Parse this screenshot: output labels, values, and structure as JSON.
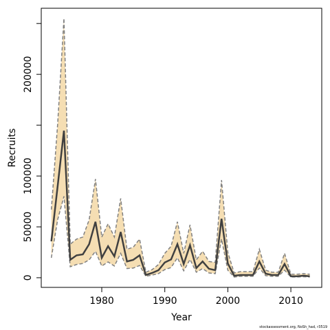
{
  "chart_data": {
    "type": "band-line",
    "xlabel": "Year",
    "ylabel": "Recruits",
    "footnote": "stockassessment.org, NoSh_had, r3519",
    "x": [
      1972,
      1973,
      1974,
      1975,
      1976,
      1977,
      1978,
      1979,
      1980,
      1981,
      1982,
      1983,
      1984,
      1985,
      1986,
      1987,
      1988,
      1989,
      1990,
      1991,
      1992,
      1993,
      1994,
      1995,
      1996,
      1997,
      1998,
      1999,
      2000,
      2001,
      2002,
      2003,
      2004,
      2005,
      2006,
      2007,
      2008,
      2009,
      2010,
      2011,
      2012,
      2013
    ],
    "values": [
      35800,
      90000,
      144600,
      17600,
      22000,
      23000,
      33000,
      55000,
      19600,
      31000,
      21000,
      45000,
      16000,
      17600,
      22000,
      2700,
      4700,
      7400,
      15000,
      18000,
      33000,
      13500,
      32000,
      9500,
      16000,
      8800,
      7400,
      58000,
      14000,
      2000,
      2700,
      2700,
      2700,
      16000,
      4000,
      2700,
      2700,
      13500,
      1400,
      1400,
      2000,
      1400
    ],
    "lower": [
      19600,
      57000,
      80000,
      10800,
      13000,
      14000,
      17600,
      26000,
      11500,
      15500,
      11500,
      24000,
      9000,
      9500,
      12000,
      1400,
      2700,
      4000,
      8000,
      10000,
      19600,
      6800,
      18000,
      5400,
      9000,
      4700,
      4000,
      38000,
      7400,
      700,
      1400,
      1400,
      1400,
      9500,
      2000,
      1400,
      1400,
      7400,
      700,
      700,
      1000,
      700
    ],
    "upper": [
      67000,
      151000,
      255000,
      33000,
      38000,
      40000,
      57000,
      97000,
      40000,
      53000,
      40000,
      78000,
      28000,
      30000,
      38000,
      5400,
      8000,
      13000,
      24000,
      31000,
      55000,
      24000,
      52000,
      17600,
      26000,
      16000,
      15000,
      96000,
      25000,
      4700,
      6000,
      6000,
      6000,
      28000,
      7400,
      5400,
      5400,
      24000,
      3400,
      3400,
      4000,
      3400
    ],
    "line_color": "#404040",
    "band_color": "#f5deb3",
    "bound_color": "#808080",
    "xlim": [
      1970.4,
      2014.9
    ],
    "ylim": [
      -9500,
      265000
    ],
    "xticks": [
      1980,
      1990,
      2000,
      2010
    ],
    "yticks": [
      0,
      50000,
      100000,
      {
        "value": 150000,
        "label": null
      },
      200000,
      {
        "value": 250000,
        "label": null
      }
    ]
  }
}
